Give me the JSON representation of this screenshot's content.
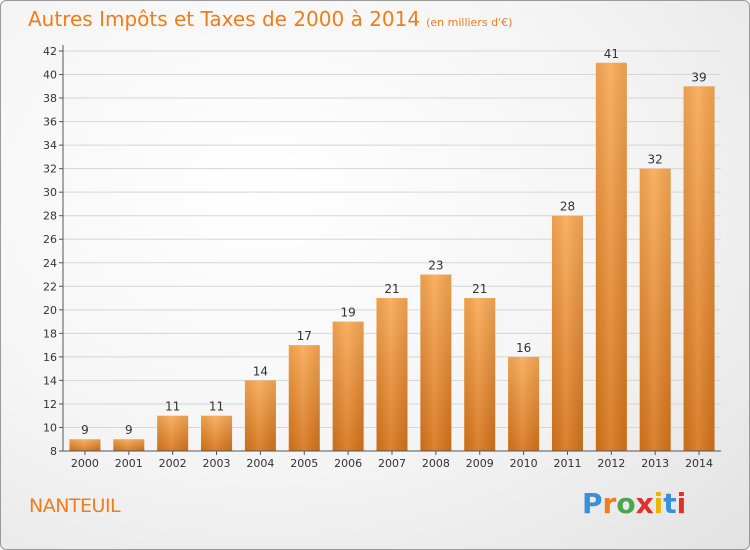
{
  "header": {
    "title": "Autres Impôts et Taxes de 2000 à 2014",
    "unit": "(en milliers d'€)"
  },
  "place_name": "NANTEUIL",
  "logo_text": "Proxiti",
  "colors": {
    "accent": "#f07c1c",
    "bar_light": "#f7a44f",
    "bar_dark": "#d97518"
  },
  "chart_data": {
    "type": "bar",
    "title": "Autres Impôts et Taxes de 2000 à 2014",
    "subtitle": "(en milliers d'€)",
    "categories": [
      "2000",
      "2001",
      "2002",
      "2003",
      "2004",
      "2005",
      "2006",
      "2007",
      "2008",
      "2009",
      "2010",
      "2011",
      "2012",
      "2013",
      "2014"
    ],
    "values": [
      9,
      9,
      11,
      11,
      14,
      17,
      19,
      21,
      23,
      21,
      16,
      28,
      41,
      32,
      39
    ],
    "ylim": [
      8,
      42
    ],
    "yticks": [
      8,
      10,
      12,
      14,
      16,
      18,
      20,
      22,
      24,
      26,
      28,
      30,
      32,
      34,
      36,
      38,
      40,
      42
    ],
    "grid": true,
    "legend": "none"
  }
}
